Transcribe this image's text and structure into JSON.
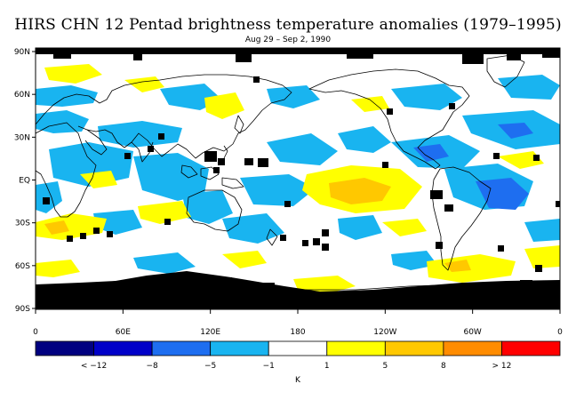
{
  "title": "HIRS CHN 12 Pentad brightness temperature anomalies (1979–1995)",
  "subtitle": "Aug 29 – Sep 2, 1990",
  "latitude_labels": [
    "90N",
    "60N",
    "30N",
    "EQ",
    "30S",
    "60S",
    "90S"
  ],
  "longitude_labels": [
    "0",
    "60E",
    "120E",
    "180",
    "120W",
    "60W",
    "0"
  ],
  "colorbar": {
    "colors": [
      "#000080",
      "#0000c8",
      "#1e6ef0",
      "#19b4f0",
      "#ffffff",
      "#ffff00",
      "#ffc800",
      "#ff8c00",
      "#ff0000"
    ],
    "tick_labels": [
      "< −12",
      "−8",
      "−5",
      "−1",
      "1",
      "5",
      "8",
      "> 12"
    ],
    "unit_label": "K"
  },
  "missing_data_color": "#000000"
}
